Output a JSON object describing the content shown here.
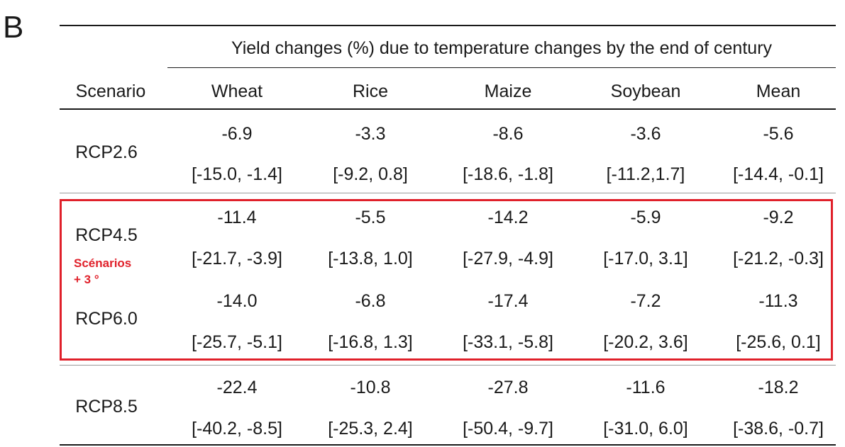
{
  "panel_label": "B",
  "table": {
    "group_header": "Yield changes (%) due to temperature changes by the end of century",
    "columns": [
      "Scenario",
      "Wheat",
      "Rice",
      "Maize",
      "Soybean",
      "Mean"
    ],
    "rows": [
      {
        "scenario": "RCP2.6",
        "means": [
          "-6.9",
          "-3.3",
          "-8.6",
          "-3.6",
          "-5.6"
        ],
        "ranges": [
          "[-15.0, -1.4]",
          "[-9.2, 0.8]",
          "[-18.6, -1.8]",
          "[-11.2,1.7]",
          "[-14.4, -0.1]"
        ]
      },
      {
        "scenario": "RCP4.5",
        "means": [
          "-11.4",
          "-5.5",
          "-14.2",
          "-5.9",
          "-9.2"
        ],
        "ranges": [
          "[-21.7, -3.9]",
          "[-13.8, 1.0]",
          "[-27.9, -4.9]",
          "[-17.0, 3.1]",
          "[-21.2, -0.3]"
        ]
      },
      {
        "scenario": "RCP6.0",
        "means": [
          "-14.0",
          "-6.8",
          "-17.4",
          "-7.2",
          "-11.3"
        ],
        "ranges": [
          "[-25.7, -5.1]",
          "[-16.8, 1.3]",
          "[-33.1, -5.8]",
          "[-20.2, 3.6]",
          "[-25.6, 0.1]"
        ]
      },
      {
        "scenario": "RCP8.5",
        "means": [
          "-22.4",
          "-10.8",
          "-27.8",
          "-11.6",
          "-18.2"
        ],
        "ranges": [
          "[-40.2, -8.5]",
          "[-25.3, 2.4]",
          "[-50.4, -9.7]",
          "[-31.0, 6.0]",
          "[-38.6, -0.7]"
        ]
      }
    ]
  },
  "annotation": {
    "line1": "Scénarios",
    "line2": "+ 3 °",
    "color": "#e0202a"
  }
}
